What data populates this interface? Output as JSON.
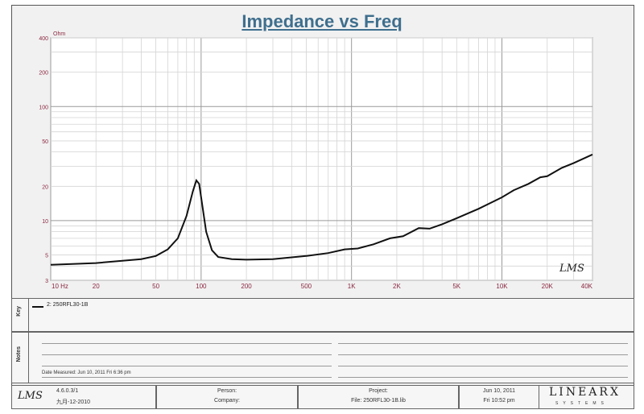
{
  "chart_data": {
    "type": "line",
    "title": "Impedance vs Freq",
    "unit_label": "Ohm",
    "x_scale": "log",
    "y_scale": "log",
    "xlim": [
      10,
      40000
    ],
    "ylim": [
      3,
      400
    ],
    "x_ticks": [
      {
        "value": 10,
        "label": "10 Hz"
      },
      {
        "value": 20,
        "label": "20"
      },
      {
        "value": 50,
        "label": "50"
      },
      {
        "value": 100,
        "label": "100"
      },
      {
        "value": 200,
        "label": "200"
      },
      {
        "value": 500,
        "label": "500"
      },
      {
        "value": 1000,
        "label": "1K"
      },
      {
        "value": 2000,
        "label": "2K"
      },
      {
        "value": 5000,
        "label": "5K"
      },
      {
        "value": 10000,
        "label": "10K"
      },
      {
        "value": 20000,
        "label": "20K"
      },
      {
        "value": 40000,
        "label": "40K"
      }
    ],
    "y_ticks": [
      {
        "value": 400,
        "label": "400"
      },
      {
        "value": 200,
        "label": "200"
      },
      {
        "value": 100,
        "label": "100"
      },
      {
        "value": 50,
        "label": "50"
      },
      {
        "value": 20,
        "label": "20"
      },
      {
        "value": 10,
        "label": "10"
      },
      {
        "value": 5,
        "label": "5"
      },
      {
        "value": 3,
        "label": "3"
      }
    ],
    "grid": true,
    "watermark": "LMS",
    "series": [
      {
        "name": "2: 250RFL30-1B",
        "color": "#111111",
        "points": [
          [
            10,
            4.1
          ],
          [
            20,
            4.25
          ],
          [
            40,
            4.6
          ],
          [
            50,
            4.9
          ],
          [
            60,
            5.6
          ],
          [
            70,
            7.0
          ],
          [
            80,
            11.0
          ],
          [
            88,
            18.0
          ],
          [
            93,
            22.5
          ],
          [
            97,
            21.0
          ],
          [
            102,
            13.5
          ],
          [
            108,
            8.0
          ],
          [
            118,
            5.5
          ],
          [
            130,
            4.8
          ],
          [
            160,
            4.6
          ],
          [
            200,
            4.55
          ],
          [
            300,
            4.6
          ],
          [
            500,
            4.9
          ],
          [
            700,
            5.2
          ],
          [
            900,
            5.6
          ],
          [
            1100,
            5.7
          ],
          [
            1400,
            6.2
          ],
          [
            1800,
            7.0
          ],
          [
            2200,
            7.3
          ],
          [
            2800,
            8.6
          ],
          [
            3300,
            8.5
          ],
          [
            4000,
            9.3
          ],
          [
            5000,
            10.5
          ],
          [
            7000,
            12.7
          ],
          [
            10000,
            16.0
          ],
          [
            12000,
            18.5
          ],
          [
            15000,
            21.0
          ],
          [
            18000,
            24.0
          ],
          [
            20000,
            24.5
          ],
          [
            25000,
            29.0
          ],
          [
            30000,
            32.0
          ],
          [
            40000,
            38.0
          ]
        ]
      }
    ]
  },
  "legend": {
    "side_label": "Key",
    "entry": "2: 250RFL30-1B"
  },
  "notes": {
    "side_label": "Notes",
    "date_measured": "Date Measured: Jun 10, 2011 Fri 6:36 pm"
  },
  "footer": {
    "logo": "LMS",
    "version": "4.6.0.3/1",
    "version_date": "九月-12-2010",
    "person_label": "Person:",
    "company_label": "Company:",
    "project_label": "Project:",
    "file_label": "File: 250RFL30-1B.lib",
    "date": "Jun 10, 2011",
    "time": "Fri 10:52 pm",
    "brand": "LINEARX",
    "brand_sub": "SYSTEMS"
  }
}
